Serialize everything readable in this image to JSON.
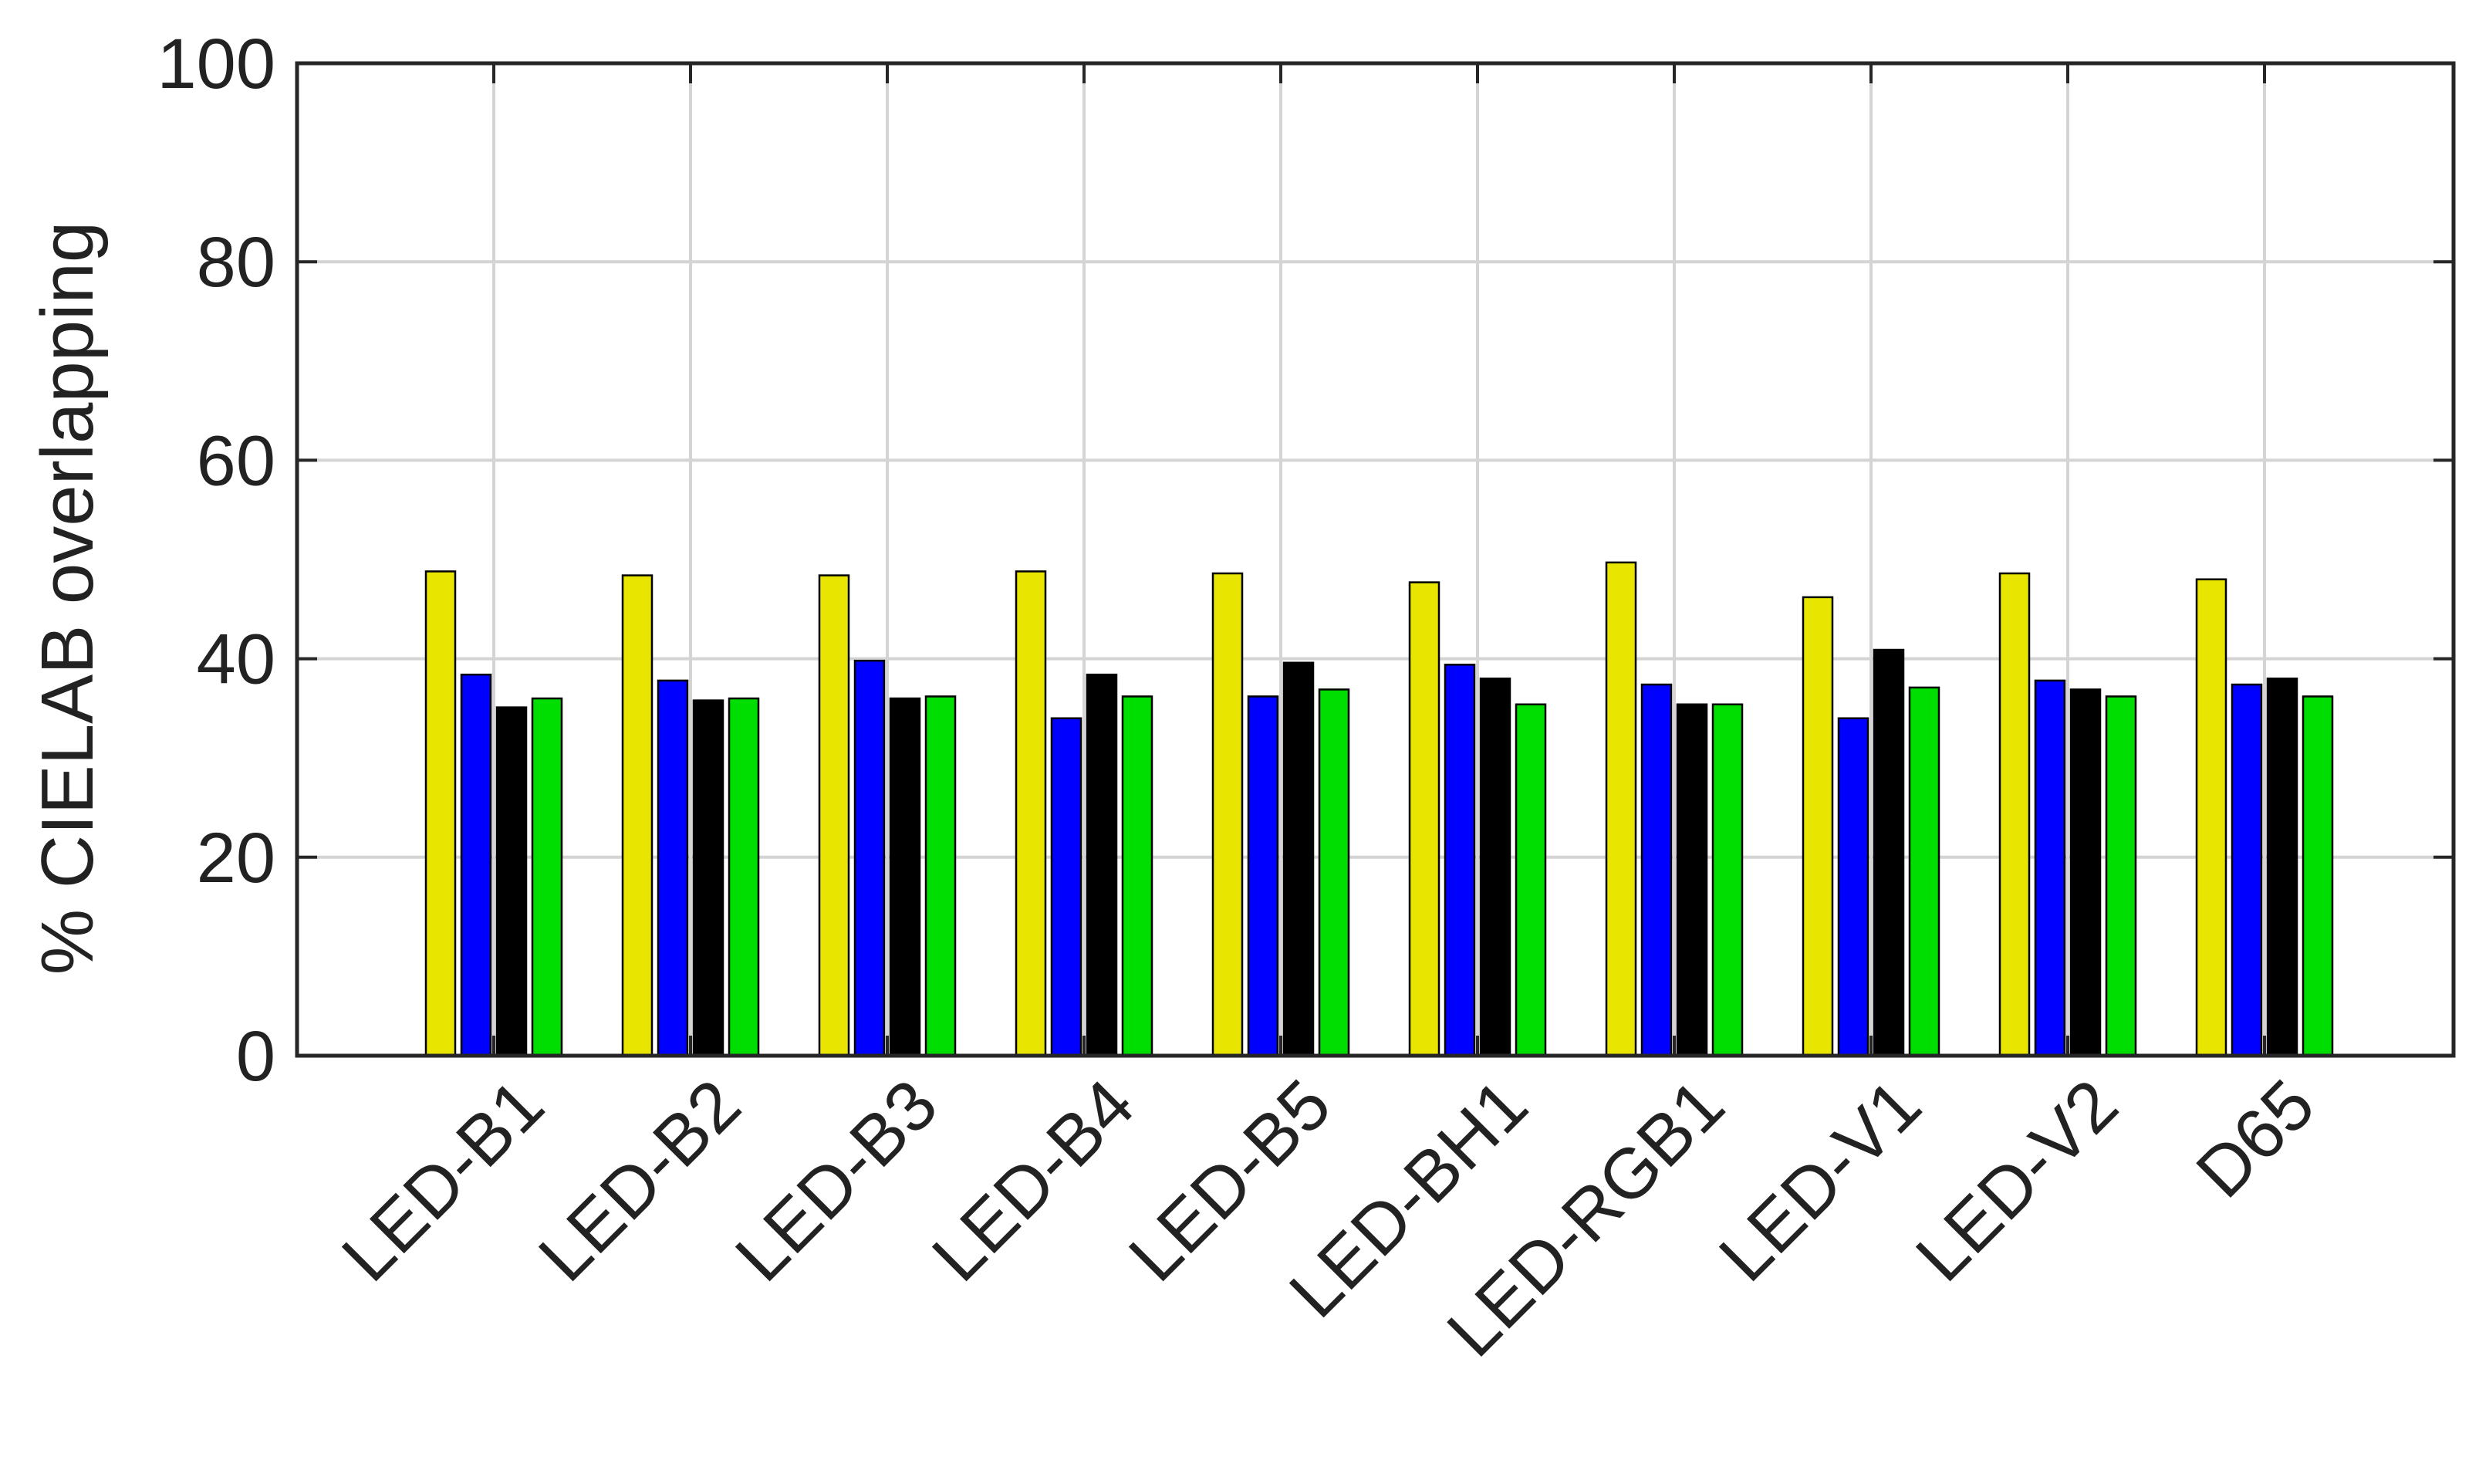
{
  "chart_data": {
    "type": "bar",
    "title": "",
    "xlabel": "",
    "ylabel": "% CIELAB overlapping",
    "ylim": [
      0,
      100
    ],
    "yticks": [
      0,
      20,
      40,
      60,
      80,
      100
    ],
    "grid": true,
    "legend": "none",
    "categories": [
      "LED-B1",
      "LED-B2",
      "LED-B3",
      "LED-B4",
      "LED-B5",
      "LED-BH1",
      "LED-RGB1",
      "LED-V1",
      "LED-V2",
      "D65"
    ],
    "series": [
      {
        "color": "#e8e600",
        "values": [
          48.8,
          48.4,
          48.4,
          48.8,
          48.6,
          47.7,
          49.7,
          46.2,
          48.6,
          48.0
        ]
      },
      {
        "color": "#0000ff",
        "values": [
          38.4,
          37.8,
          39.8,
          34.0,
          36.2,
          39.4,
          37.4,
          34.0,
          37.8,
          37.4
        ]
      },
      {
        "color": "#000000",
        "values": [
          35.1,
          35.8,
          36.0,
          38.4,
          39.6,
          38.0,
          35.4,
          40.9,
          36.9,
          38.0
        ]
      },
      {
        "color": "#00dd00",
        "values": [
          36.0,
          36.0,
          36.2,
          36.2,
          36.9,
          35.4,
          35.4,
          37.1,
          36.2,
          36.2
        ]
      }
    ]
  }
}
